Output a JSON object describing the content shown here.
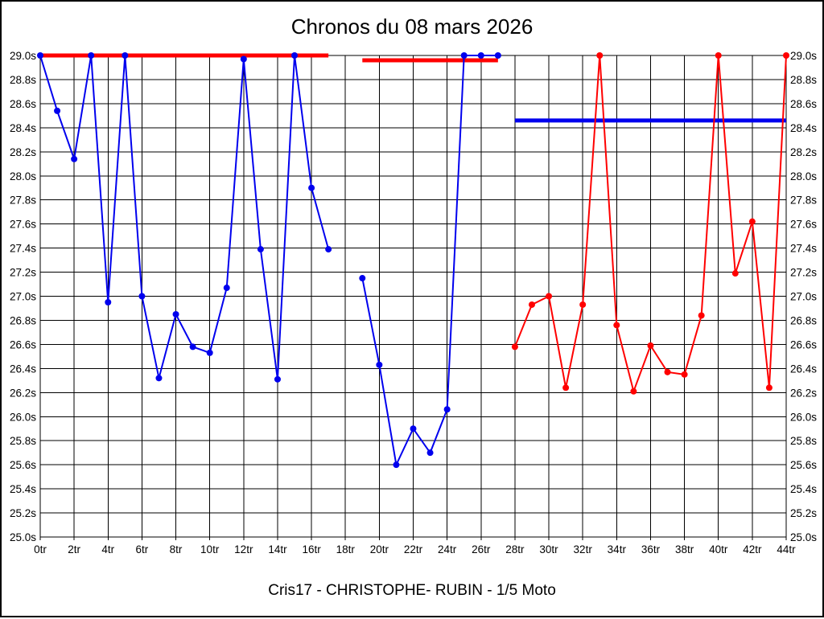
{
  "chart_data": {
    "type": "line",
    "title": "Chronos du 08 mars 2026",
    "subtitle": "Cris17 - CHRISTOPHE- RUBIN - 1/5 Moto",
    "x_unit_suffix": "tr",
    "y_unit_suffix": "s",
    "xlim": [
      0,
      44
    ],
    "x_tick_step": 2,
    "ylim": [
      25.0,
      29.0
    ],
    "y_tick_step": 0.2,
    "grid": true,
    "grid_color": "#000000",
    "background": "#ffffff",
    "series": [
      {
        "name": "stint-blue",
        "color": "#0000ee",
        "start_lap": 0,
        "values": [
          29.0,
          28.54,
          28.14,
          29.0,
          26.95,
          29.0,
          27.0,
          26.32,
          26.85,
          26.58,
          26.53,
          27.07,
          28.97,
          27.39,
          26.31,
          29.0,
          27.9,
          27.39,
          null,
          27.15,
          26.43,
          25.6,
          25.9,
          25.7,
          26.06,
          29.0,
          29.0,
          29.0
        ]
      },
      {
        "name": "stint-red",
        "color": "#ff0000",
        "start_lap": 28,
        "values": [
          26.58,
          26.93,
          27.0,
          26.24,
          26.93,
          29.0,
          26.76,
          26.21,
          26.59,
          26.37,
          26.35,
          26.84,
          29.0,
          27.19,
          27.62,
          26.24,
          29.0
        ]
      }
    ],
    "reference_lines": [
      {
        "name": "ref-red-1",
        "color": "#ff0000",
        "y": 29.0,
        "x_from": 0,
        "x_to": 17
      },
      {
        "name": "ref-red-2",
        "color": "#ff0000",
        "y": 28.96,
        "x_from": 19,
        "x_to": 27
      },
      {
        "name": "ref-blue",
        "color": "#0000ee",
        "y": 28.46,
        "x_from": 28,
        "x_to": 44
      }
    ]
  }
}
